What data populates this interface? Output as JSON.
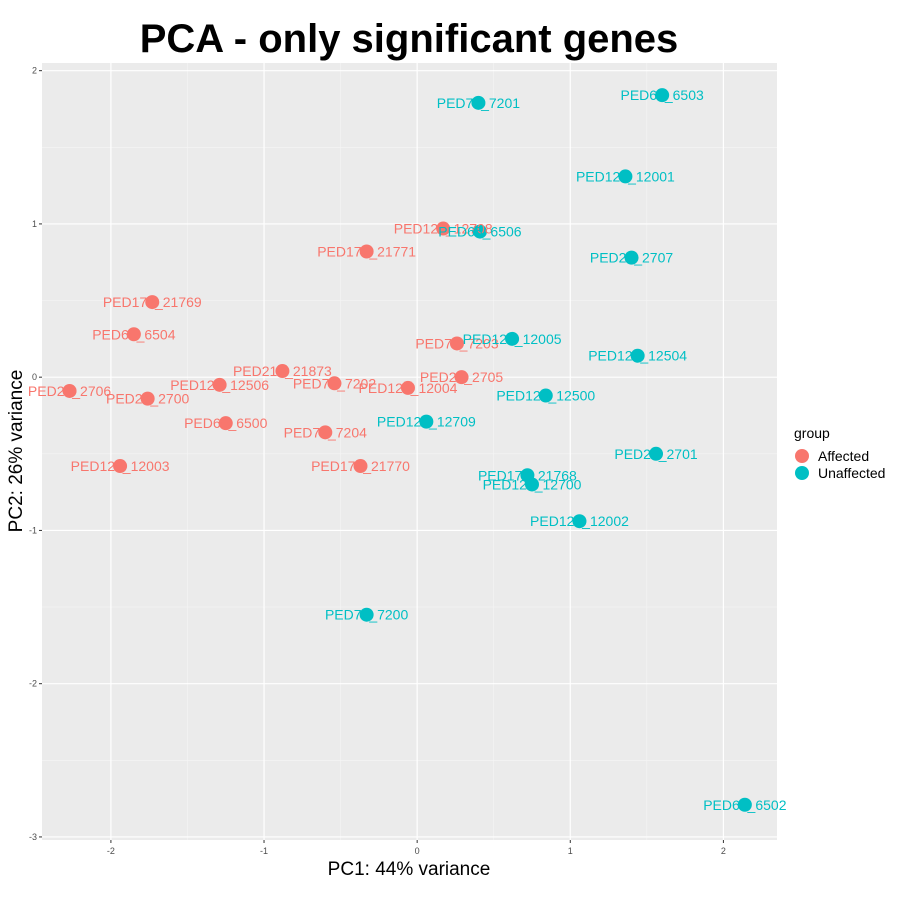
{
  "chart_data": {
    "type": "scatter",
    "title": "PCA - only significant genes",
    "xlabel": "PC1: 44% variance",
    "ylabel": "PC2: 26% variance",
    "xlim": [
      -2.45,
      2.35
    ],
    "ylim": [
      -3.02,
      2.05
    ],
    "xticks": [
      -2,
      -1,
      0,
      1,
      2
    ],
    "yticks": [
      -3,
      -2,
      -1,
      0,
      1,
      2
    ],
    "grid": true,
    "legend": {
      "title": "group",
      "placement": "right",
      "entries": [
        {
          "name": "Affected",
          "color": "#F8766D"
        },
        {
          "name": "Unaffected",
          "color": "#00BFC4"
        }
      ]
    },
    "series": [
      {
        "name": "Affected",
        "color": "#F8766D",
        "points": [
          {
            "label": "PED127_12708",
            "x": 0.17,
            "y": 0.97
          },
          {
            "label": "PED172_21771",
            "x": -0.33,
            "y": 0.82
          },
          {
            "label": "PED172_21769",
            "x": -1.73,
            "y": 0.49
          },
          {
            "label": "PED65_6504",
            "x": -1.85,
            "y": 0.28
          },
          {
            "label": "PED72_7203",
            "x": 0.26,
            "y": 0.22
          },
          {
            "label": "PED210_21873",
            "x": -0.88,
            "y": 0.04
          },
          {
            "label": "PED27_2705",
            "x": 0.29,
            "y": 0.0
          },
          {
            "label": "PED125_12506",
            "x": -1.29,
            "y": -0.05
          },
          {
            "label": "PED72_7202",
            "x": -0.54,
            "y": -0.04
          },
          {
            "label": "PED120_12004",
            "x": -0.06,
            "y": -0.07
          },
          {
            "label": "PED27_2706",
            "x": -2.27,
            "y": -0.09
          },
          {
            "label": "PED27_2700",
            "x": -1.76,
            "y": -0.14
          },
          {
            "label": "PED65_6500",
            "x": -1.25,
            "y": -0.3
          },
          {
            "label": "PED72_7204",
            "x": -0.6,
            "y": -0.36
          },
          {
            "label": "PED120_12003",
            "x": -1.94,
            "y": -0.58
          },
          {
            "label": "PED172_21770",
            "x": -0.37,
            "y": -0.58
          }
        ]
      },
      {
        "name": "Unaffected",
        "color": "#00BFC4",
        "points": [
          {
            "label": "PED65_6503",
            "x": 1.6,
            "y": 1.84
          },
          {
            "label": "PED72_7201",
            "x": 0.4,
            "y": 1.79
          },
          {
            "label": "PED120_12001",
            "x": 1.36,
            "y": 1.31
          },
          {
            "label": "PED65_6506",
            "x": 0.41,
            "y": 0.95
          },
          {
            "label": "PED27_2707",
            "x": 1.4,
            "y": 0.78
          },
          {
            "label": "PED120_12005",
            "x": 0.62,
            "y": 0.25
          },
          {
            "label": "PED125_12504",
            "x": 1.44,
            "y": 0.14
          },
          {
            "label": "PED125_12500",
            "x": 0.84,
            "y": -0.12
          },
          {
            "label": "PED127_12709",
            "x": 0.06,
            "y": -0.29
          },
          {
            "label": "PED27_2701",
            "x": 1.56,
            "y": -0.5
          },
          {
            "label": "PED172_21768",
            "x": 0.72,
            "y": -0.64
          },
          {
            "label": "PED127_12700",
            "x": 0.75,
            "y": -0.7
          },
          {
            "label": "PED120_12002",
            "x": 1.06,
            "y": -0.94
          },
          {
            "label": "PED72_7200",
            "x": -0.33,
            "y": -1.55
          },
          {
            "label": "PED65_6502",
            "x": 2.14,
            "y": -2.79
          }
        ]
      }
    ]
  }
}
